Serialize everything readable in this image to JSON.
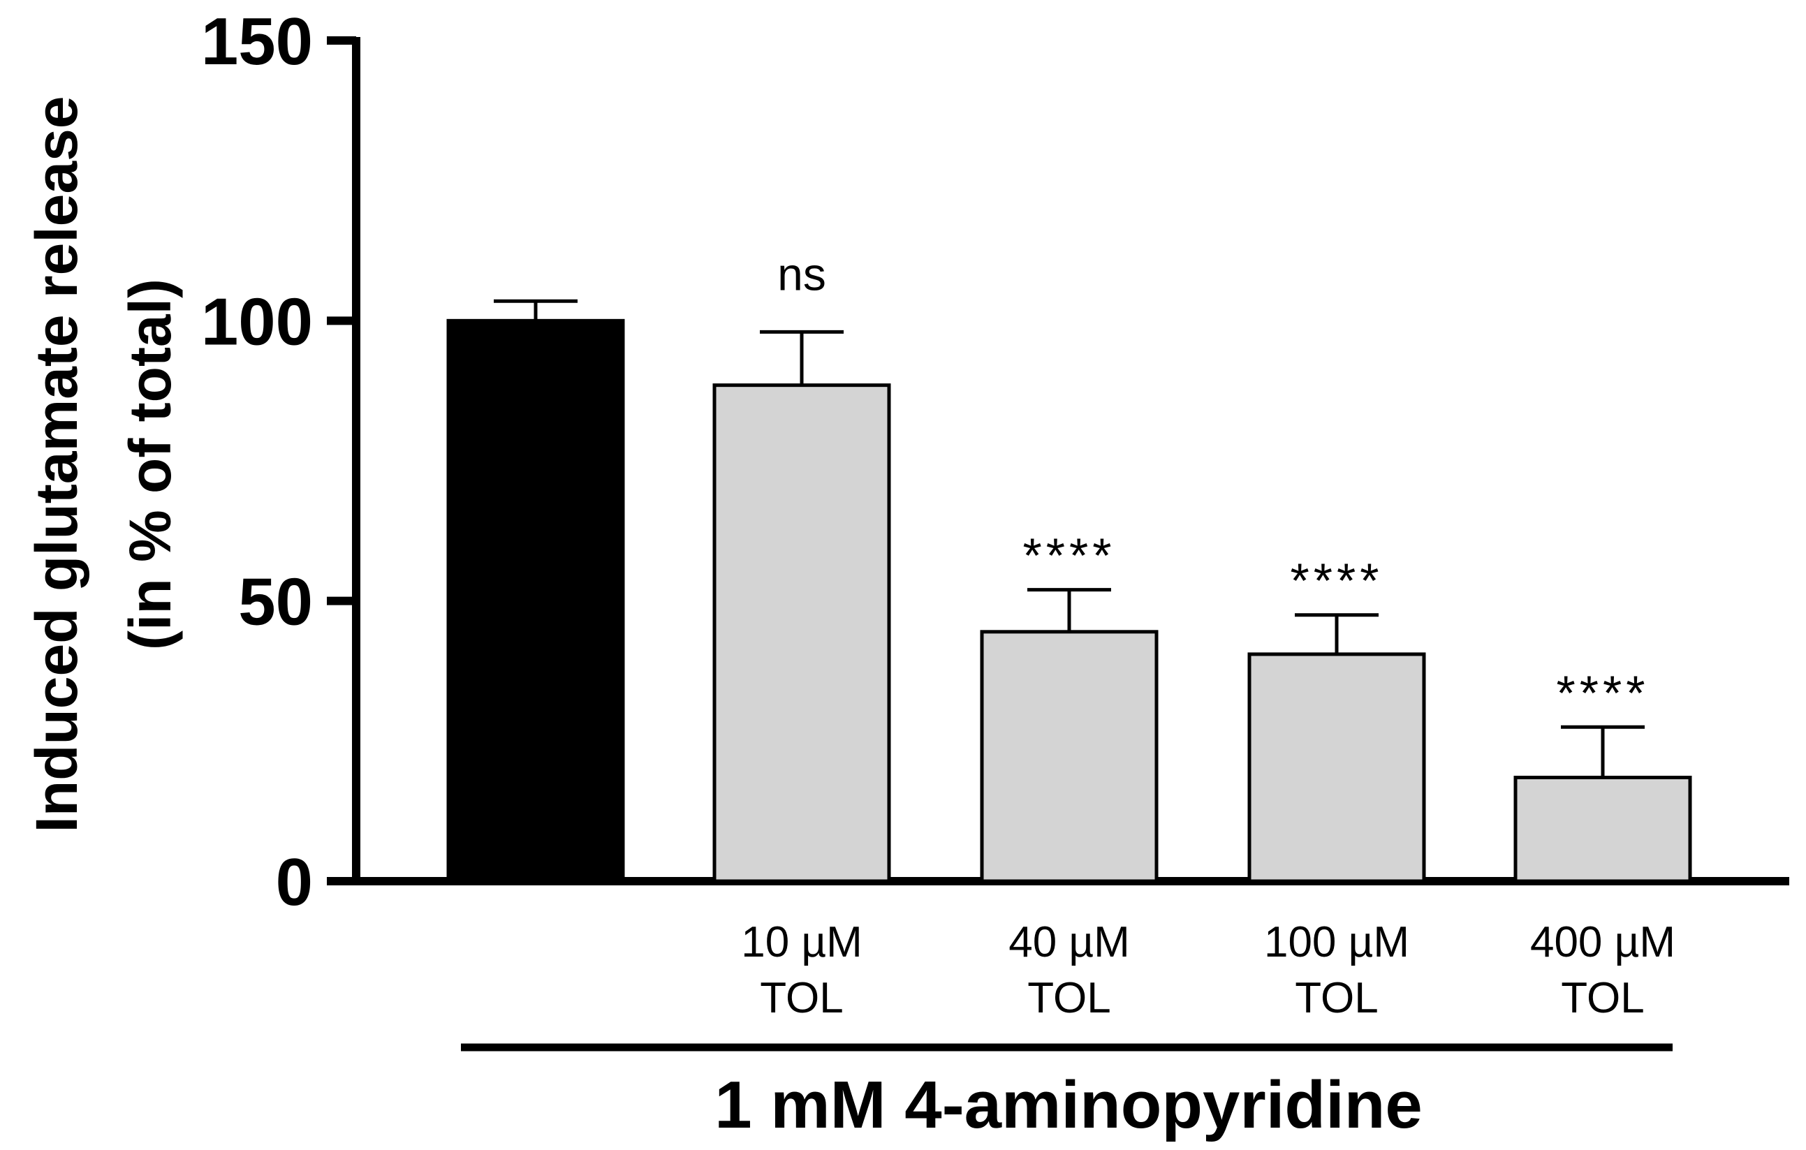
{
  "chart_data": {
    "type": "bar",
    "title": "",
    "ylabel_line1": "Induced glutamate release",
    "ylabel_line2": "(in % of total)",
    "ylim": [
      0,
      150
    ],
    "yticks": [
      0,
      50,
      100,
      150
    ],
    "group_label": "1 mM 4-aminopyridine",
    "bars": [
      {
        "label_line1": "",
        "label_line2": "",
        "value": 100,
        "error": 3.5,
        "annotation": "",
        "color": "#000000"
      },
      {
        "label_line1": "10 µM",
        "label_line2": "TOL",
        "value": 88.5,
        "error": 9.5,
        "annotation": "ns",
        "color": "#d4d4d4"
      },
      {
        "label_line1": "40 µM",
        "label_line2": "TOL",
        "value": 44.5,
        "error": 7.5,
        "annotation": "****",
        "color": "#d4d4d4"
      },
      {
        "label_line1": "100 µM",
        "label_line2": "TOL",
        "value": 40.5,
        "error": 7,
        "annotation": "****",
        "color": "#d4d4d4"
      },
      {
        "label_line1": "400 µM",
        "label_line2": "TOL",
        "value": 18.5,
        "error": 9,
        "annotation": "****",
        "color": "#d4d4d4"
      }
    ]
  }
}
